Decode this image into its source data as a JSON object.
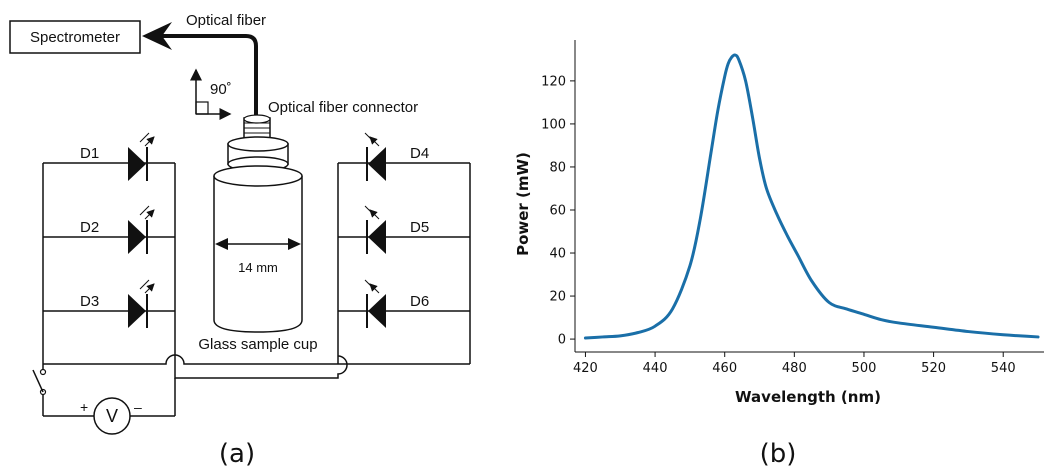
{
  "diagram": {
    "spectrometer": "Spectrometer",
    "optical_fiber": "Optical fiber",
    "angle": "90˚",
    "connector": "Optical fiber connector",
    "diodes": [
      "D1",
      "D2",
      "D3",
      "D4",
      "D5",
      "D6"
    ],
    "dimension": "14 mm",
    "sample_cup": "Glass sample cup",
    "voltmeter": "V",
    "plus": "+",
    "minus": "–",
    "panel_label": "(a)"
  },
  "chart_data": {
    "type": "line",
    "xlabel": "Wavelength (nm)",
    "ylabel": "Power (mW)",
    "xlim": [
      417,
      552
    ],
    "ylim": [
      -6,
      139
    ],
    "xticks": [
      420,
      440,
      460,
      480,
      500,
      520,
      540
    ],
    "yticks": [
      0,
      20,
      40,
      60,
      80,
      100,
      120
    ],
    "series_color": "#1a6fa8",
    "x": [
      420,
      425,
      430,
      435,
      440,
      445,
      450,
      453,
      456,
      458,
      460,
      461,
      462,
      463,
      464,
      466,
      468,
      470,
      472,
      475,
      478,
      481,
      485,
      490,
      495,
      500,
      505,
      510,
      520,
      530,
      540,
      545,
      550
    ],
    "y": [
      0.5,
      1,
      1.5,
      3,
      6,
      14,
      34,
      56,
      86,
      106,
      122,
      128,
      131,
      132,
      130,
      120,
      103,
      84,
      70,
      58,
      48,
      39,
      27,
      17,
      14,
      11.5,
      9,
      7.5,
      5.5,
      3.5,
      2,
      1.5,
      1
    ],
    "panel_label": "(b)"
  }
}
